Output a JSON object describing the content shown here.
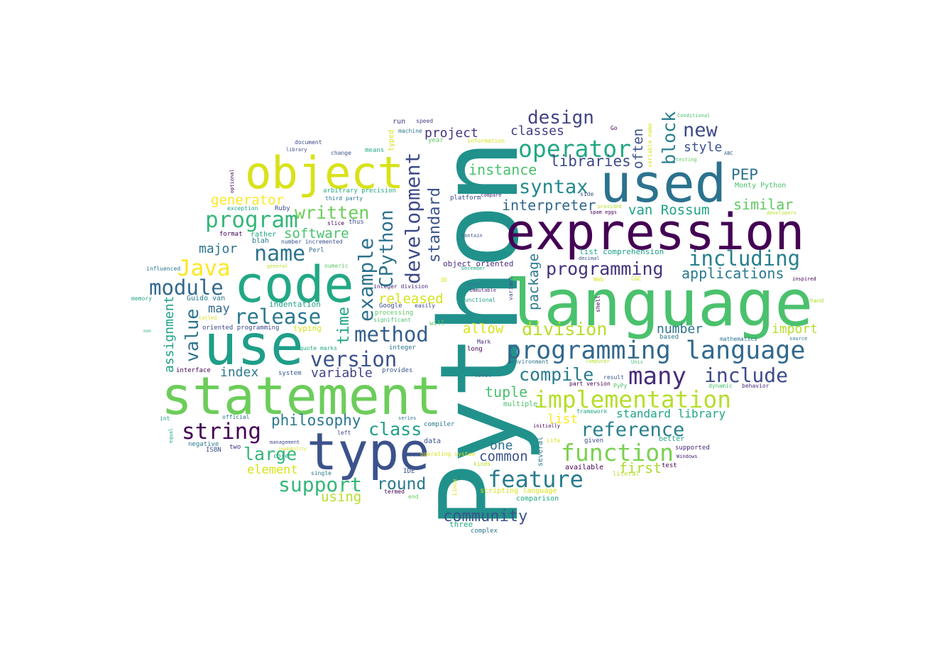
{
  "words": [
    {
      "text": "Python",
      "color": "#21918c"
    },
    {
      "text": "language",
      "color": "#4ac16d"
    },
    {
      "text": "expression",
      "color": "#440154"
    },
    {
      "text": "used",
      "color": "#2c728e"
    },
    {
      "text": "statement",
      "color": "#6ccd5a"
    },
    {
      "text": "use",
      "color": "#1f9e89"
    },
    {
      "text": "code",
      "color": "#22a884"
    },
    {
      "text": "type",
      "color": "#3b528b"
    },
    {
      "text": "object",
      "color": "#d8e219"
    },
    {
      "text": "programming language",
      "color": "#31688e"
    },
    {
      "text": "implementation",
      "color": "#b5de2b"
    },
    {
      "text": "function",
      "color": "#7ad151"
    },
    {
      "text": "operator",
      "color": "#22a884"
    },
    {
      "text": "including",
      "color": "#277f8e"
    },
    {
      "text": "feature",
      "color": "#287c8e"
    },
    {
      "text": "many",
      "color": "#472d7b"
    },
    {
      "text": "include",
      "color": "#3e4a89"
    },
    {
      "text": "release",
      "color": "#2a788e"
    },
    {
      "text": "module",
      "color": "#31688e"
    },
    {
      "text": "version",
      "color": "#3b528b"
    },
    {
      "text": "program",
      "color": "#35b779"
    },
    {
      "text": "method",
      "color": "#355f8d"
    },
    {
      "text": "reference",
      "color": "#277f8e"
    },
    {
      "text": "string",
      "color": "#440154"
    },
    {
      "text": "Java",
      "color": "#fde725"
    },
    {
      "text": "name",
      "color": "#2c728e"
    },
    {
      "text": "support",
      "color": "#35b779"
    },
    {
      "text": "syntax",
      "color": "#23898e"
    },
    {
      "text": "design",
      "color": "#414487"
    },
    {
      "text": "new",
      "color": "#3e4a89"
    },
    {
      "text": "programming",
      "color": "#46327e"
    },
    {
      "text": "division",
      "color": "#b5de2b"
    },
    {
      "text": "compile",
      "color": "#287c8e"
    },
    {
      "text": "community",
      "color": "#3b528b"
    },
    {
      "text": "written",
      "color": "#6ccd5a"
    },
    {
      "text": "class",
      "color": "#1f9e89"
    },
    {
      "text": "large",
      "color": "#35b779"
    },
    {
      "text": "philosophy",
      "color": "#2a788e"
    },
    {
      "text": "round",
      "color": "#2a788e"
    },
    {
      "text": "libraries",
      "color": "#3e4a89"
    },
    {
      "text": "instance",
      "color": "#4ac16d"
    },
    {
      "text": "applications",
      "color": "#2a788e"
    },
    {
      "text": "van Rossum",
      "color": "#1fa187"
    },
    {
      "text": "interpreter",
      "color": "#31688e"
    },
    {
      "text": "similar",
      "color": "#5ec962"
    },
    {
      "text": "generator",
      "color": "#fde725"
    },
    {
      "text": "software",
      "color": "#4ac16d"
    },
    {
      "text": "PEP",
      "color": "#2c728e"
    },
    {
      "text": "tuple",
      "color": "#4ac16d"
    },
    {
      "text": "common",
      "color": "#3b528b"
    },
    {
      "text": "first",
      "color": "#addc30"
    },
    {
      "text": "standard library",
      "color": "#20a486"
    },
    {
      "text": "major",
      "color": "#2c728e"
    },
    {
      "text": "released",
      "color": "#d8e219"
    },
    {
      "text": "allow",
      "color": "#d8e219"
    },
    {
      "text": "number",
      "color": "#2c728e"
    },
    {
      "text": "import",
      "color": "#b5de2b"
    },
    {
      "text": "style",
      "color": "#3b528b"
    },
    {
      "text": "classes",
      "color": "#433e85"
    },
    {
      "text": "project",
      "color": "#46327e"
    },
    {
      "text": "index",
      "color": "#2a788e"
    },
    {
      "text": "variable",
      "color": "#414487"
    },
    {
      "text": "element",
      "color": "#d8e219"
    },
    {
      "text": "using",
      "color": "#b5de2b"
    },
    {
      "text": "one",
      "color": "#2c728e"
    },
    {
      "text": "list",
      "color": "#fde725"
    },
    {
      "text": "may",
      "color": "#31688e"
    },
    {
      "text": "indentation",
      "color": "#1f9e89"
    },
    {
      "text": "Guido van",
      "color": "#2a788e"
    },
    {
      "text": "oriented programming",
      "color": "#3e4a89"
    },
    {
      "text": "typing",
      "color": "#d8e219"
    },
    {
      "text": "object oriented",
      "color": "#472d7b"
    },
    {
      "text": "list comprehension",
      "color": "#1fa187"
    },
    {
      "text": "integer division",
      "color": "#482878"
    },
    {
      "text": "Google",
      "color": "#3e4a89"
    },
    {
      "text": "easily",
      "color": "#3e4a89"
    },
    {
      "text": "processing",
      "color": "#5ec962"
    },
    {
      "text": "significant",
      "color": "#4ac16d"
    },
    {
      "text": "will",
      "color": "#5ec962"
    },
    {
      "text": "integer",
      "color": "#2a788e"
    },
    {
      "text": "quote marks",
      "color": "#22a884"
    },
    {
      "text": "provides",
      "color": "#38588c"
    },
    {
      "text": "system",
      "color": "#38588c"
    },
    {
      "text": "interface",
      "color": "#440154"
    },
    {
      "text": "ISBN",
      "color": "#3b528b"
    },
    {
      "text": "two",
      "color": "#46327e"
    },
    {
      "text": "management",
      "color": "#3e4a89"
    },
    {
      "text": "negative",
      "color": "#2a788e"
    },
    {
      "text": "data",
      "color": "#3b528b"
    },
    {
      "text": "single",
      "color": "#2a788e"
    },
    {
      "text": "IDE",
      "color": "#3b528b"
    },
    {
      "text": "termed",
      "color": "#440154"
    },
    {
      "text": "end",
      "color": "#5ec962"
    },
    {
      "text": "three",
      "color": "#22a884"
    },
    {
      "text": "complex",
      "color": "#2a788e"
    },
    {
      "text": "comparison",
      "color": "#22a884"
    },
    {
      "text": "scripting language",
      "color": "#d8e219"
    },
    {
      "text": "available",
      "color": "#440154"
    },
    {
      "text": "kinds",
      "color": "#b5de2b"
    },
    {
      "text": "literal",
      "color": "#b5de2b"
    },
    {
      "text": "test",
      "color": "#440154"
    },
    {
      "text": "Windows",
      "color": "#482878"
    },
    {
      "text": "supported",
      "color": "#482878"
    },
    {
      "text": "better",
      "color": "#22a884"
    },
    {
      "text": "given",
      "color": "#3e4a89"
    },
    {
      "text": "initially",
      "color": "#440154"
    },
    {
      "text": "framework",
      "color": "#22a884"
    },
    {
      "text": "multiple",
      "color": "#4ac16d"
    },
    {
      "text": "PyPy",
      "color": "#4ac16d"
    },
    {
      "text": "result",
      "color": "#38588c"
    },
    {
      "text": "part version",
      "color": "#440154"
    },
    {
      "text": "dynamic",
      "color": "#4ac16d"
    },
    {
      "text": "behavior",
      "color": "#472d7b"
    },
    {
      "text": "Unix",
      "color": "#4ac16d"
    },
    {
      "text": "computer",
      "color": "#b5de2b"
    },
    {
      "text": "environment",
      "color": "#2c728e"
    },
    {
      "text": "mathematics",
      "color": "#2c728e"
    },
    {
      "text": "based",
      "color": "#2a788e"
    },
    {
      "text": "source",
      "color": "#2a788e"
    },
    {
      "text": "inspired",
      "color": "#440154"
    },
    {
      "text": "hand",
      "color": "#addc30"
    },
    {
      "text": "Perl",
      "color": "#31688e"
    },
    {
      "text": "blah",
      "color": "#2a788e"
    },
    {
      "text": "core",
      "color": "#20a486"
    },
    {
      "text": "number incremented",
      "color": "#3b528b"
    },
    {
      "text": "rather",
      "color": "#20a486"
    },
    {
      "text": "format",
      "color": "#440154"
    },
    {
      "text": "slice",
      "color": "#440154"
    },
    {
      "text": "thus",
      "color": "#3b528b"
    },
    {
      "text": "exception",
      "color": "#1fa187"
    },
    {
      "text": "Ruby",
      "color": "#3e4a89"
    },
    {
      "text": "third party",
      "color": "#2a788e"
    },
    {
      "text": "arbitrary precision",
      "color": "#22a884"
    },
    {
      "text": "platform",
      "color": "#3e4a89"
    },
    {
      "text": "compare",
      "color": "#482878"
    },
    {
      "text": "change",
      "color": "#3b528b"
    },
    {
      "text": "means",
      "color": "#22a884"
    },
    {
      "text": "document",
      "color": "#3e4a89"
    },
    {
      "text": "library",
      "color": "#3e4a89"
    },
    {
      "text": "year",
      "color": "#5ec962"
    },
    {
      "text": "information",
      "color": "#d8e219"
    },
    {
      "text": "run",
      "color": "#433e85"
    },
    {
      "text": "speed",
      "color": "#433e85"
    },
    {
      "text": "machine",
      "color": "#2a788e"
    },
    {
      "text": "contain",
      "color": "#3b528b"
    },
    {
      "text": "numeric",
      "color": "#5ec962"
    },
    {
      "text": "user",
      "color": "#2a788e"
    },
    {
      "text": "immutable",
      "color": "#482878"
    },
    {
      "text": "functional",
      "color": "#20a486"
    },
    {
      "text": "December",
      "color": "#22a884"
    },
    {
      "text": "key",
      "color": "#1fa187"
    },
    {
      "text": "long",
      "color": "#440154"
    },
    {
      "text": "Mark",
      "color": "#472d7b"
    },
    {
      "text": "level",
      "color": "#2a788e"
    },
    {
      "text": "compiler",
      "color": "#2a788e"
    },
    {
      "text": "series",
      "color": "#2a788e"
    },
    {
      "text": "left",
      "color": "#3e4a89"
    },
    {
      "text": "operating system",
      "color": "#d8e219"
    },
    {
      "text": "decimal",
      "color": "#3b528b"
    },
    {
      "text": "Web",
      "color": "#d8e219"
    },
    {
      "text": "Life",
      "color": "#d8e219"
    },
    {
      "text": "Go",
      "color": "#440154"
    },
    {
      "text": "ABC",
      "color": "#31688e"
    },
    {
      "text": "Monty Python",
      "color": "#4ac16d"
    },
    {
      "text": "developers",
      "color": "#b5de2b"
    },
    {
      "text": "provided",
      "color": "#b5de2b"
    },
    {
      "text": "spam eggs",
      "color": "#440154"
    },
    {
      "text": "side",
      "color": "#3e4a89"
    },
    {
      "text": "Conditional",
      "color": "#4ac16d"
    },
    {
      "text": "testing",
      "color": "#5ec962"
    },
    {
      "text": "influenced",
      "color": "#2a788e"
    },
    {
      "text": "memory",
      "color": "#20a486"
    },
    {
      "text": "non",
      "color": "#22a884"
    },
    {
      "text": "called",
      "color": "#d8e219"
    },
    {
      "text": "general",
      "color": "#b5de2b"
    },
    {
      "text": "int",
      "color": "#1fa187"
    },
    {
      "text": "official",
      "color": "#2c728e"
    },
    {
      "text": "readability",
      "color": "#d8e219"
    },
    {
      "text": "3D",
      "color": "#d8e219"
    },
    {
      "text": "C&C",
      "color": "#d8e219"
    },
    {
      "text": "example",
      "color": "#2c728e"
    },
    {
      "text": "development",
      "color": "#3e4a89"
    },
    {
      "text": "CPython",
      "color": "#2c728e"
    },
    {
      "text": "time",
      "color": "#20a486"
    },
    {
      "text": "standard",
      "color": "#3b528b"
    },
    {
      "text": "value",
      "color": "#2c728e"
    },
    {
      "text": "assignment",
      "color": "#1fa187"
    },
    {
      "text": "block",
      "color": "#277f8e"
    },
    {
      "text": "often",
      "color": "#3b528b"
    },
    {
      "text": "package",
      "color": "#2a788e"
    },
    {
      "text": "variable name",
      "color": "#d8e219"
    },
    {
      "text": "typed",
      "color": "#d8e219"
    },
    {
      "text": "optional",
      "color": "#440154"
    },
    {
      "text": "equal",
      "color": "#22a884"
    },
    {
      "text": "several",
      "color": "#2a788e"
    },
    {
      "text": "variant",
      "color": "#3e4a89"
    },
    {
      "text": "shell",
      "color": "#440154"
    },
    {
      "text": "Linux",
      "color": "#d8e219"
    }
  ]
}
